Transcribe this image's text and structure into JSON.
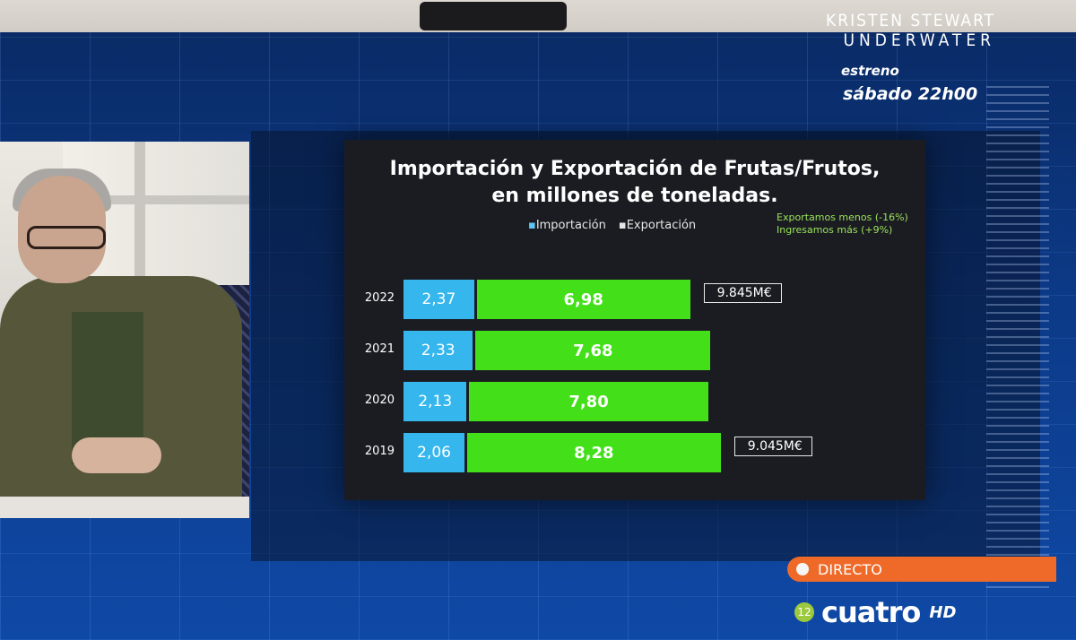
{
  "promo": {
    "line1": "KRISTEN STEWART",
    "line2": "UNDERWATER",
    "subtitle": "estreno",
    "time": "sábado 22h00"
  },
  "chart_data": {
    "type": "bar",
    "title_line1": "Importación y Exportación de Frutas/Frutos,",
    "title_line2": "en millones de toneladas.",
    "stacked": true,
    "orientation": "horizontal",
    "categories": [
      "2022",
      "2021",
      "2020",
      "2019"
    ],
    "series": [
      {
        "name": "Importación",
        "color": "#35b7ee",
        "values": [
          2.37,
          2.33,
          2.13,
          2.06
        ],
        "labels": [
          "2,37",
          "2,33",
          "2,13",
          "2,06"
        ]
      },
      {
        "name": "Exportación",
        "color": "#43e01a",
        "values": [
          6.98,
          7.68,
          7.8,
          8.28
        ],
        "labels": [
          "6,98",
          "7,68",
          "7,80",
          "8,28"
        ]
      }
    ],
    "annotation": {
      "line1": "Exportamos menos (-16%)",
      "line2": "Ingresamos más (+9%)"
    },
    "callouts": [
      {
        "category": "2022",
        "text": "9.845M€"
      },
      {
        "category": "2019",
        "text": "9.045M€"
      }
    ],
    "legend_markers": {
      "marker": "▪"
    }
  },
  "broadcast": {
    "live_label": "DIRECTO",
    "channel": "cuatro",
    "age_rating": "12",
    "hd": "HD"
  }
}
